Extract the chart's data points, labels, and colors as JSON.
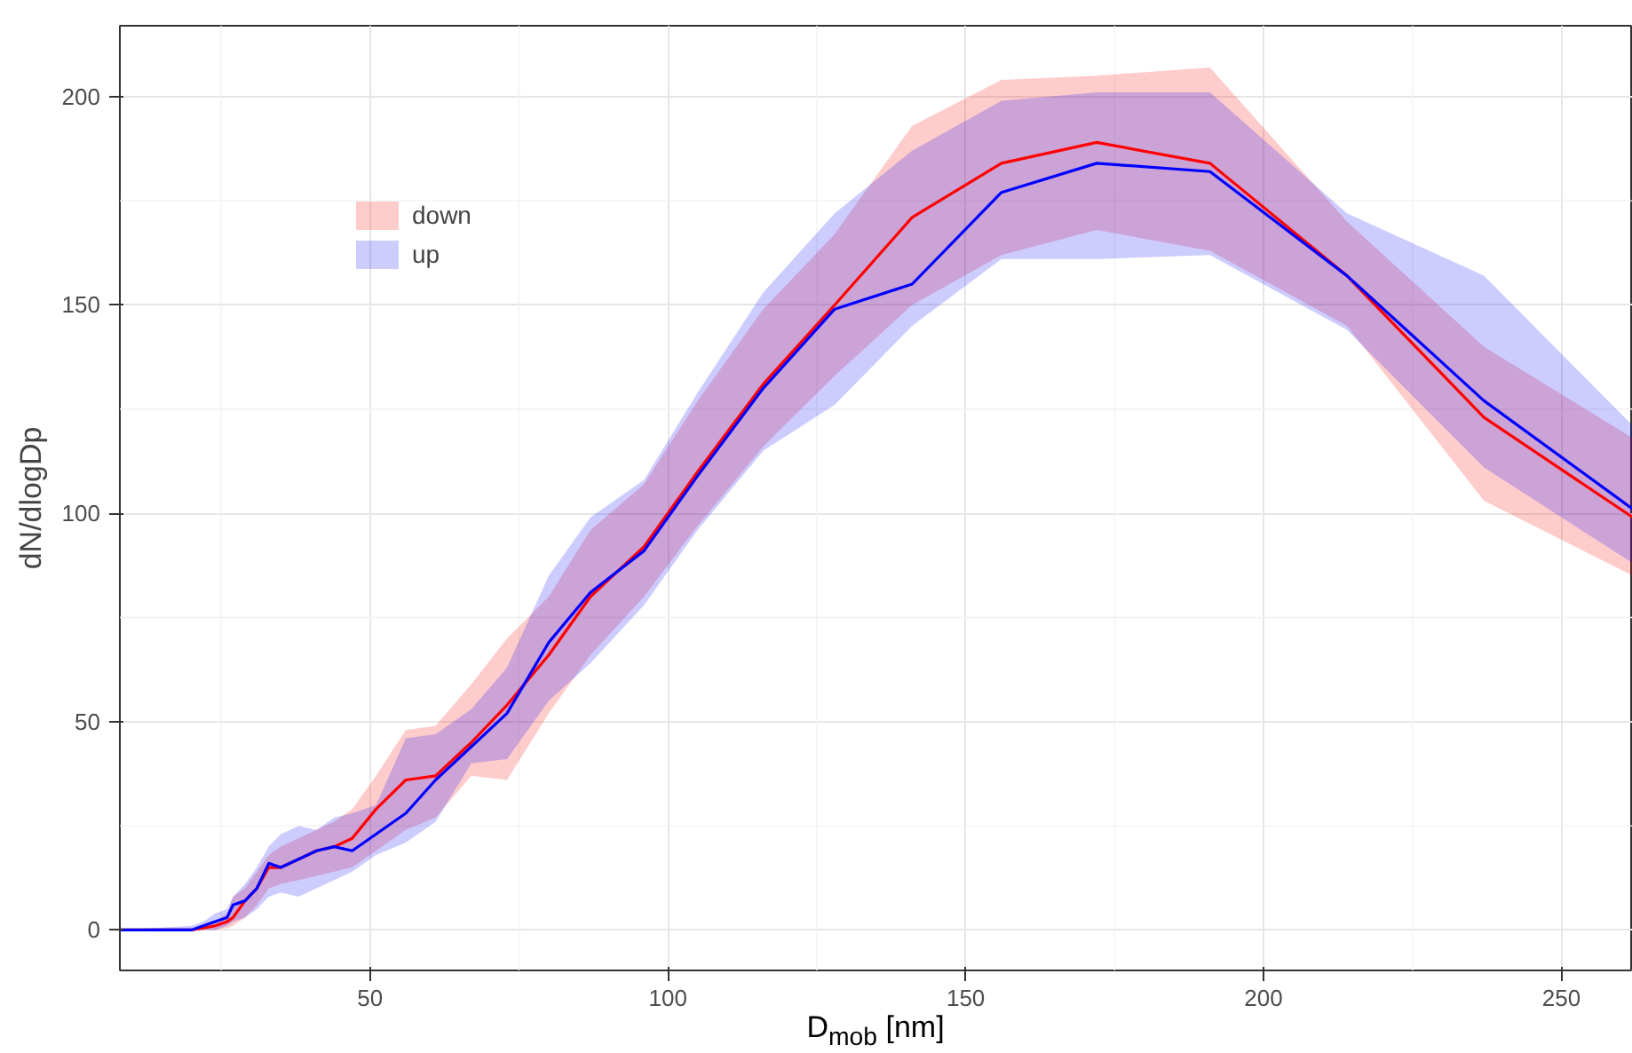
{
  "chart_data": {
    "type": "line",
    "xlabel": "D$_{mob}$ [nm]",
    "ylabel": "dN/dlogDp",
    "x": [
      8,
      20,
      22,
      24,
      26,
      27,
      29,
      31,
      33,
      35,
      38,
      41,
      44,
      47,
      51,
      56,
      61,
      67,
      73,
      80,
      87,
      96,
      105,
      116,
      128,
      141,
      156,
      172,
      191,
      214,
      237,
      262
    ],
    "series": [
      {
        "name": "down",
        "color": "#ff0000",
        "values": [
          0,
          0,
          0.5,
          1,
          2,
          3,
          7,
          10,
          15,
          15,
          17,
          19,
          20,
          22,
          29,
          36,
          37,
          45,
          54,
          66,
          80,
          92,
          110,
          131,
          150,
          171,
          184,
          189,
          184,
          157,
          123,
          99
        ],
        "lower": [
          0,
          0,
          0,
          0,
          0.5,
          1,
          3,
          6,
          10,
          11,
          12,
          13,
          14,
          15,
          19,
          24,
          27,
          37,
          36,
          52,
          66,
          80,
          97,
          116,
          133,
          150,
          162,
          168,
          163,
          145,
          103,
          85
        ],
        "upper": [
          0,
          0,
          1,
          2,
          4,
          8,
          10,
          14,
          18,
          20,
          22,
          24,
          26,
          29,
          37,
          48,
          49,
          59,
          70,
          80,
          96,
          107,
          127,
          149,
          167,
          193,
          204,
          205,
          207,
          170,
          140,
          118
        ]
      },
      {
        "name": "up",
        "color": "#0000ff",
        "values": [
          0,
          0,
          1,
          2,
          3,
          6,
          7,
          10,
          16,
          15,
          17,
          19,
          20,
          19,
          23,
          28,
          36,
          44,
          52,
          69,
          81,
          91,
          109,
          130,
          149,
          155,
          177,
          184,
          182,
          157,
          127,
          101
        ],
        "lower": [
          0,
          0,
          0,
          0,
          1,
          2,
          3,
          5,
          8,
          9,
          8,
          10,
          12,
          14,
          18,
          21,
          26,
          40,
          41,
          55,
          64,
          78,
          96,
          115,
          126,
          145,
          161,
          161,
          162,
          144,
          111,
          88
        ],
        "upper": [
          0,
          1,
          2,
          4,
          5,
          8,
          11,
          15,
          20,
          23,
          25,
          24,
          27,
          28,
          30,
          46,
          47,
          53,
          63,
          85,
          99,
          108,
          129,
          153,
          172,
          187,
          199,
          201,
          201,
          172,
          157,
          121
        ]
      }
    ],
    "xlim": [
      8,
      262
    ],
    "ylim": [
      -9.7,
      217
    ],
    "xticks": [
      50,
      100,
      150,
      200,
      250
    ],
    "yticks": [
      0,
      50,
      100,
      150,
      200
    ],
    "grid": true,
    "legend": "top left",
    "line_style": "solid",
    "marker": "none"
  }
}
